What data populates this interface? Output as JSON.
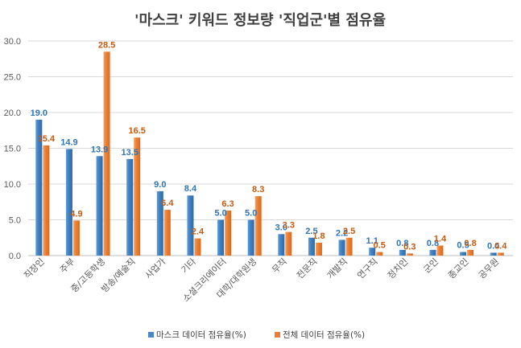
{
  "chart_data": {
    "type": "bar",
    "title": "'마스크' 키워드 정보량 '직업군'별 점유율",
    "xlabel": "",
    "ylabel": "",
    "ylim": [
      0,
      30
    ],
    "yticks": [
      "0.0",
      "5.0",
      "10.0",
      "15.0",
      "20.0",
      "25.0",
      "30.0"
    ],
    "grid": true,
    "legend_position": "bottom",
    "categories": [
      "직장인",
      "주부",
      "중/고등학생",
      "방송/예술직",
      "사업가",
      "기타",
      "소셜크리에이터",
      "대학/대학원생",
      "무직",
      "전문직",
      "개발직",
      "연구직",
      "정치인",
      "군인",
      "종교인",
      "공무원"
    ],
    "series": [
      {
        "name": "마스크 데이터 점유율(%)",
        "color": "#2E75B6",
        "values": [
          19.0,
          14.9,
          13.9,
          13.5,
          9.0,
          8.4,
          5.0,
          5.0,
          3.0,
          2.5,
          2.2,
          1.1,
          0.8,
          0.8,
          0.5,
          0.4
        ],
        "labels": [
          "19.0",
          "14.9",
          "13.9",
          "13.5",
          "9.0",
          "8.4",
          "5.0",
          "5.0",
          "3.0",
          "2.5",
          "2.2",
          "1.1",
          "0.8",
          "0.8",
          "0.5",
          "0.4"
        ]
      },
      {
        "name": "전체 데이터 점유율(%)",
        "color": "#ED7D31",
        "values": [
          15.4,
          4.9,
          28.5,
          16.5,
          6.4,
          2.4,
          6.3,
          8.3,
          3.3,
          1.8,
          2.5,
          0.5,
          0.3,
          1.4,
          0.8,
          0.4
        ],
        "labels": [
          "15.4",
          "4.9",
          "28.5",
          "16.5",
          "6.4",
          "2.4",
          "6.3",
          "8.3",
          "3.3",
          "1.8",
          "2.5",
          "0.5",
          "0.3",
          "1.4",
          "0.8",
          "0.4"
        ]
      }
    ]
  },
  "colors": {
    "label_series_1": "#2E75B6",
    "label_series_2": "#C55A11",
    "grid": "#D9D9D9",
    "axis": "#BFBFBF"
  }
}
